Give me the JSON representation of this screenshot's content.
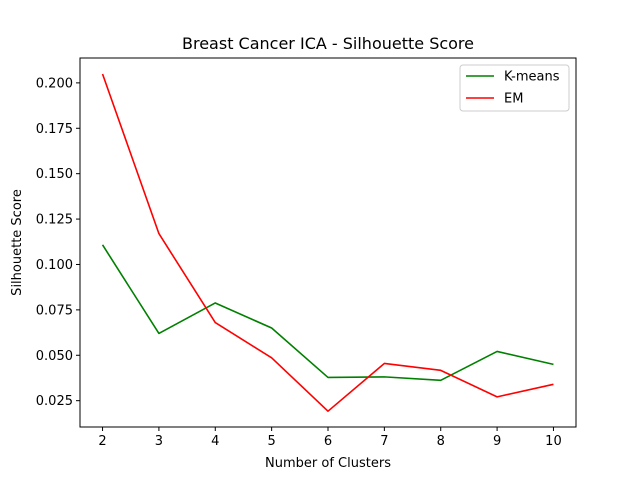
{
  "chart_data": {
    "type": "line",
    "title": "Breast Cancer ICA - Silhouette Score",
    "xlabel": "Number of Clusters",
    "ylabel": "Silhouette Score",
    "x": [
      2,
      3,
      4,
      5,
      6,
      7,
      8,
      9,
      10
    ],
    "xlim": [
      1.6,
      10.4
    ],
    "ylim": [
      0.0105,
      0.2137
    ],
    "xticks": [
      "2",
      "3",
      "4",
      "5",
      "6",
      "7",
      "8",
      "9",
      "10"
    ],
    "yticks": [
      0.025,
      0.05,
      0.075,
      0.1,
      0.125,
      0.15,
      0.175,
      0.2
    ],
    "ytick_labels": [
      "0.025",
      "0.050",
      "0.075",
      "0.100",
      "0.125",
      "0.150",
      "0.175",
      "0.200"
    ],
    "grid": false,
    "legend_position": "top-right",
    "series": [
      {
        "name": "K-means",
        "color": "#008000",
        "values": [
          0.1108,
          0.062,
          0.0788,
          0.065,
          0.0378,
          0.0381,
          0.0362,
          0.0521,
          0.045
        ]
      },
      {
        "name": "EM",
        "color": "#ff0000",
        "values": [
          0.2049,
          0.117,
          0.068,
          0.0486,
          0.0192,
          0.0455,
          0.0417,
          0.0271,
          0.034
        ]
      }
    ]
  }
}
